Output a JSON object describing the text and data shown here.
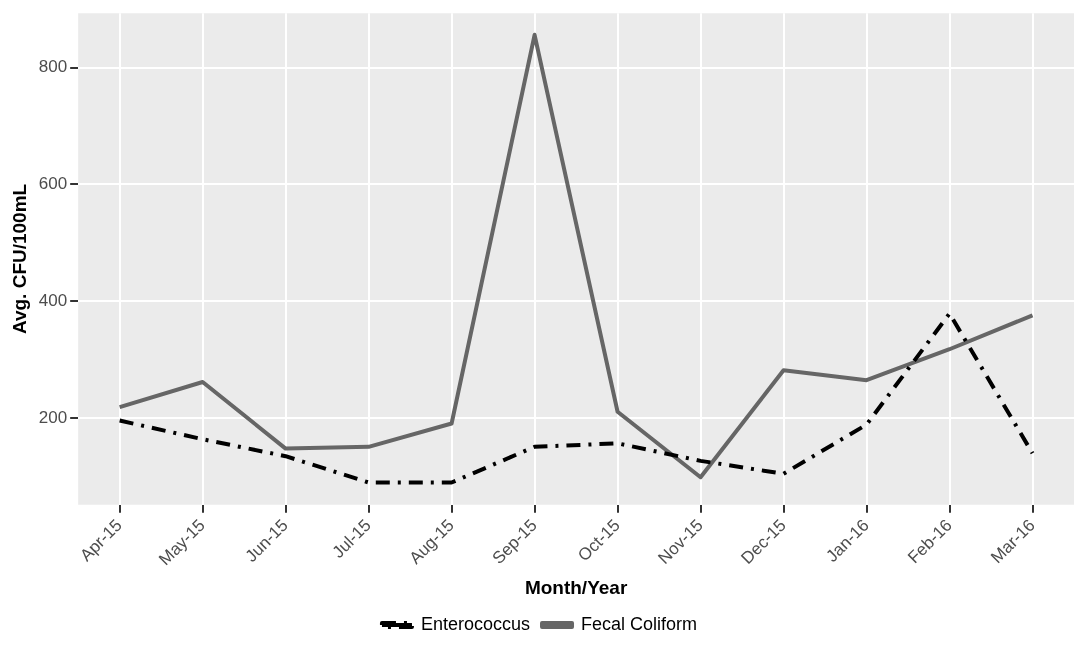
{
  "chart_data": {
    "type": "line",
    "xlabel": "Month/Year",
    "ylabel": "Avg. CFU/100mL",
    "categories": [
      "Apr-15",
      "May-15",
      "Jun-15",
      "Jul-15",
      "Aug-15",
      "Sep-15",
      "Oct-15",
      "Nov-15",
      "Dec-15",
      "Jan-16",
      "Feb-16",
      "Mar-16"
    ],
    "series": [
      {
        "name": "Enterococcus",
        "color": "#000000",
        "line_style": "dashed",
        "values": [
          196,
          164,
          135,
          90,
          90,
          151,
          157,
          127,
          105,
          189,
          379,
          140
        ]
      },
      {
        "name": "Fecal Coliform",
        "color": "#666666",
        "line_style": "solid",
        "values": [
          219,
          262,
          148,
          151,
          191,
          856,
          211,
          99,
          282,
          265,
          318,
          376
        ]
      }
    ],
    "ylim": [
      52,
      893
    ],
    "yticks": [
      200,
      400,
      600,
      800
    ],
    "grid": true,
    "legend": "bottom",
    "marker": "none"
  }
}
